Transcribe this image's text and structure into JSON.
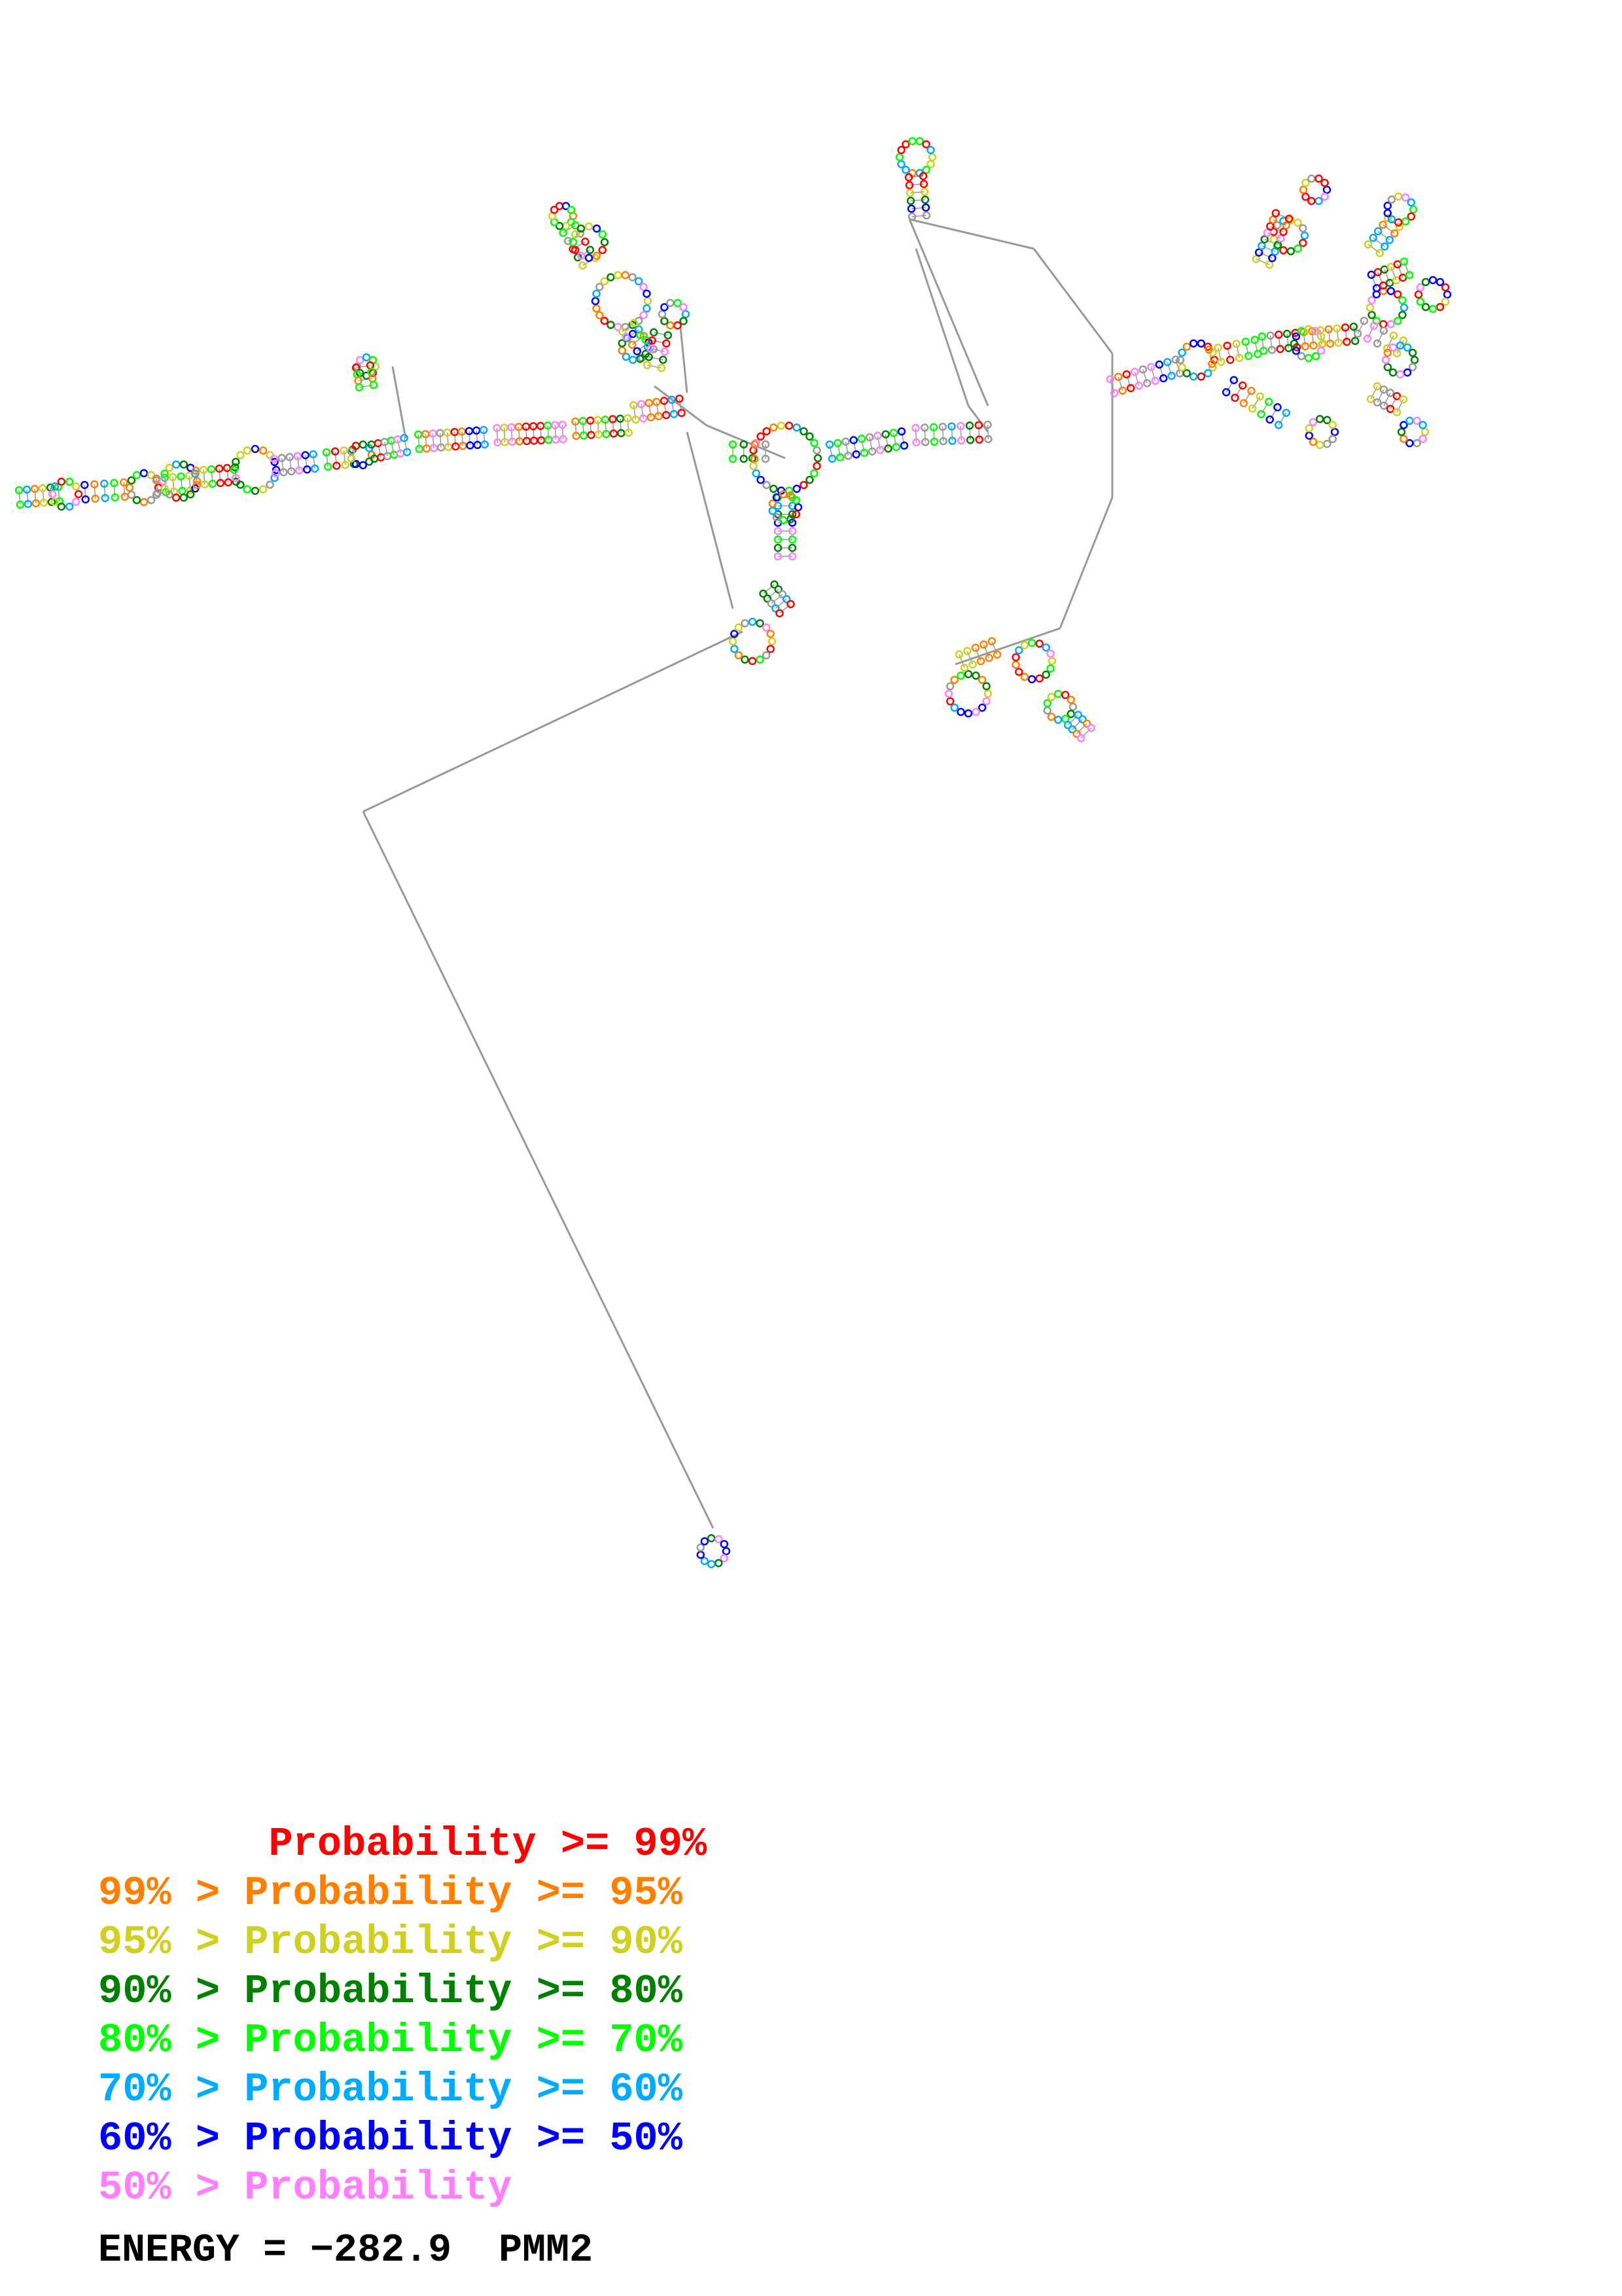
{
  "legend": [
    {
      "prefix": "       ",
      "label": "Probability >= 99%",
      "color": "#ff0000"
    },
    {
      "prefix": "99% > ",
      "label": "Probability >= 95%",
      "color": "#ff8000"
    },
    {
      "prefix": "95% > ",
      "label": "Probability >= 90%",
      "color": "#d0d020"
    },
    {
      "prefix": "90% > ",
      "label": "Probability >= 80%",
      "color": "#008000"
    },
    {
      "prefix": "80% > ",
      "label": "Probability >= 70%",
      "color": "#00ff00"
    },
    {
      "prefix": "70% > ",
      "label": "Probability >= 60%",
      "color": "#00aaff"
    },
    {
      "prefix": "60% > ",
      "label": "Probability >= 50%",
      "color": "#0000ff"
    },
    {
      "prefix": "50% > ",
      "label": "Probability",
      "color": "#ff80ff"
    }
  ],
  "energy_label": "ENERGY = −282.9",
  "sequence_name": "PMM2",
  "colors": {
    "backbone": "#999999",
    "ink": "#000000"
  }
}
